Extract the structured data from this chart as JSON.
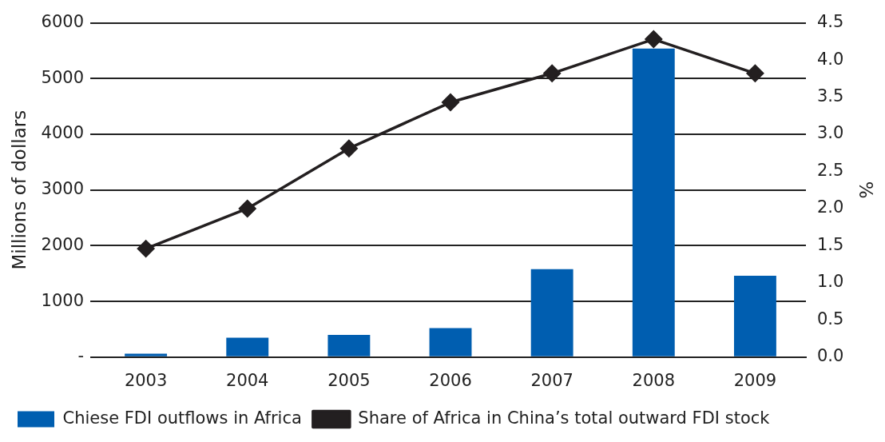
{
  "chart_data": {
    "type": "bar",
    "ylabel": "Millions of dollars",
    "y2label": "%",
    "categories": [
      "2003",
      "2004",
      "2005",
      "2006",
      "2007",
      "2008",
      "2009"
    ],
    "series": [
      {
        "name": "Chiese FDI outflows in Africa",
        "color": "#005eb0",
        "values": [
          60,
          350,
          400,
          520,
          1580,
          5540,
          1460
        ]
      },
      {
        "name": "Share of Africa in China’s total outward FDI stock",
        "type": "line",
        "axis": "y2",
        "color": "#231f20",
        "marker": "diamond",
        "values": [
          1.46,
          2.0,
          2.81,
          3.43,
          3.82,
          4.28,
          3.82
        ]
      }
    ],
    "ylim": [
      0,
      6000
    ],
    "yticks": [
      {
        "value": 0,
        "label": "-"
      },
      1000,
      2000,
      3000,
      4000,
      5000,
      6000
    ],
    "y2lim": [
      0,
      4.5
    ],
    "y2ticks": [
      {
        "value": 0,
        "label": "0.0"
      },
      {
        "value": 0.5,
        "label": "0.5"
      },
      {
        "value": 1,
        "label": "1.0"
      },
      {
        "value": 1.5,
        "label": "1.5"
      },
      {
        "value": 2,
        "label": "2.0"
      },
      {
        "value": 2.5,
        "label": "2.5"
      },
      {
        "value": 3,
        "label": "3.0"
      },
      {
        "value": 3.5,
        "label": "3.5"
      },
      {
        "value": 4,
        "label": "4.0"
      },
      {
        "value": 4.5,
        "label": "4.5"
      }
    ],
    "grid": "y",
    "legend": "bottom"
  }
}
